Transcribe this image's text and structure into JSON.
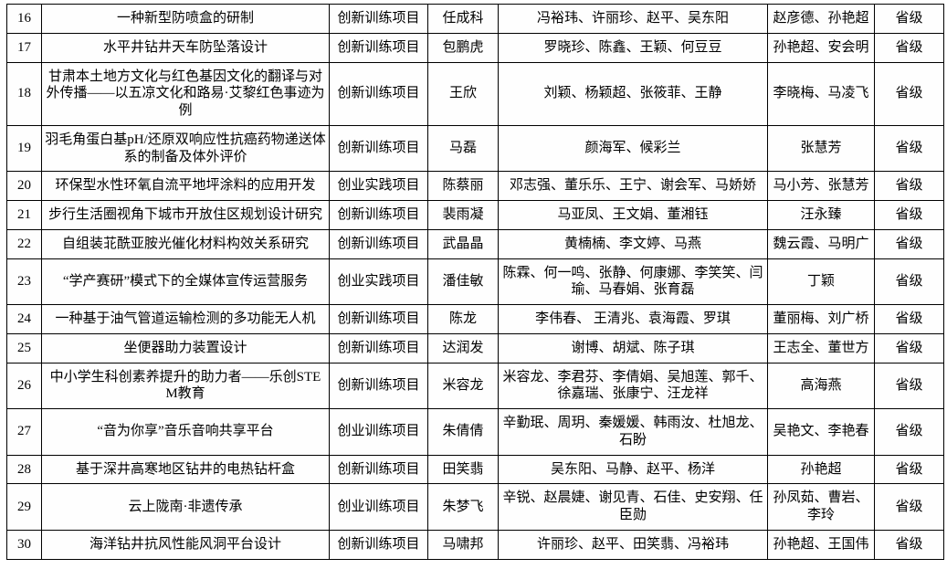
{
  "table": {
    "level_color": "#000000",
    "border_color": "#000000",
    "rows": [
      {
        "no": "16",
        "title": "一种新型防喷盒的研制",
        "type": "创新训练项目",
        "leader": "任成科",
        "members": "冯裕玮、许丽珍、赵平、吴东阳",
        "advisors": "赵彦德、孙艳超",
        "level": "省级"
      },
      {
        "no": "17",
        "title": "水平井钻井天车防坠落设计",
        "type": "创新训练项目",
        "leader": "包鹏虎",
        "members": "罗晓珍、陈鑫、王颖、何豆豆",
        "advisors": "孙艳超、安会明",
        "level": "省级"
      },
      {
        "no": "18",
        "title": "甘肃本土地方文化与红色基因文化的翻译与对外传播——以五凉文化和路易·艾黎红色事迹为例",
        "type": "创新训练项目",
        "leader": "王欣",
        "members": "刘颖、杨颖超、张筱菲、王静",
        "advisors": "李晓梅、马凌飞",
        "level": "省级"
      },
      {
        "no": "19",
        "title": "羽毛角蛋白基pH/还原双响应性抗癌药物递送体系的制备及体外评价",
        "type": "创新训练项目",
        "leader": "马磊",
        "members": "颜海军、候彩兰",
        "advisors": "张慧芳",
        "level": "省级"
      },
      {
        "no": "20",
        "title": "环保型水性环氧自流平地坪涂料的应用开发",
        "type": "创业实践项目",
        "leader": "陈蔡丽",
        "members": "邓志强、董乐乐、王宁、谢会军、马娇娇",
        "advisors": "马小芳、张慧芳",
        "level": "省级"
      },
      {
        "no": "21",
        "title": "步行生活圈视角下城市开放住区规划设计研究",
        "type": "创新训练项目",
        "leader": "裴雨凝",
        "members": "马亚凤、王文娟、董湘钰",
        "advisors": "汪永臻",
        "level": "省级"
      },
      {
        "no": "22",
        "title": "自组装苝酰亚胺光催化材料构效关系研究",
        "type": "创新训练项目",
        "leader": "武晶晶",
        "members": "黄楠楠、李文婷、马燕",
        "advisors": "魏云霞、马明广",
        "level": "省级"
      },
      {
        "no": "23",
        "title": "“学产赛研”模式下的全媒体宣传运营服务",
        "type": "创业实践项目",
        "leader": "潘佳敏",
        "members": "陈霖、何一鸣、张静、何康娜、李笑笑、闫瑜、马春娟、张育磊",
        "advisors": "丁颖",
        "level": "省级"
      },
      {
        "no": "24",
        "title": "一种基于油气管道运输检测的多功能无人机",
        "type": "创新训练项目",
        "leader": "陈龙",
        "members": "李伟春、 王清兆、袁海霞、罗琪",
        "advisors": "董丽梅、刘广桥",
        "level": "省级"
      },
      {
        "no": "25",
        "title": "坐便器助力装置设计",
        "type": "创新训练项目",
        "leader": "达润发",
        "members": "谢博、胡斌、陈子琪",
        "advisors": "王志全、董世方",
        "level": "省级"
      },
      {
        "no": "26",
        "title": "中小学生科创素养提升的助力者——乐创STEM教育",
        "type": "创新训练项目",
        "leader": "米容龙",
        "members": "米容龙、李君芬、李倩娟、吴旭莲、郭千、徐嘉瑞、张康宁、汪龙祥",
        "advisors": "高海燕",
        "level": "省级"
      },
      {
        "no": "27",
        "title": "“音为你享”音乐音响共享平台",
        "type": "创业训练项目",
        "leader": "朱倩倩",
        "members": "辛勤珉、周玥、秦媛媛、韩雨汝、杜旭龙、石盼",
        "advisors": "吴艳文、李艳春",
        "level": "省级"
      },
      {
        "no": "28",
        "title": "基于深井高寒地区钻井的电热钻杆盒",
        "type": "创新训练项目",
        "leader": "田笑翡",
        "members": "吴东阳、马静、赵平、杨洋",
        "advisors": "孙艳超",
        "level": "省级"
      },
      {
        "no": "29",
        "title": "云上陇南·非遗传承",
        "type": "创业训练项目",
        "leader": "朱梦飞",
        "members": "辛锐、赵晨婕、谢见青、石佳、史安翔、任臣勋",
        "advisors": "孙凤茹、曹岩、李玲",
        "level": "省级"
      },
      {
        "no": "30",
        "title": "海洋钻井抗风性能风洞平台设计",
        "type": "创新训练项目",
        "leader": "马啸邦",
        "members": "许丽珍、赵平、田笑翡、冯裕玮",
        "advisors": "孙艳超、王国伟",
        "level": "省级"
      }
    ]
  }
}
